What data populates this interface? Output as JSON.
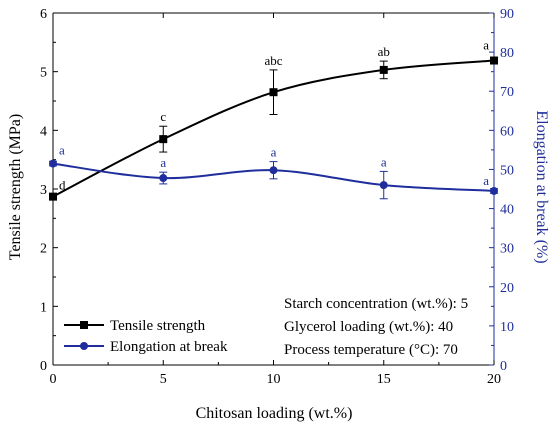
{
  "chart_data": {
    "type": "line",
    "x": [
      0,
      5,
      10,
      15,
      20
    ],
    "xlabel": "Chitosan loading (wt.%)",
    "xlim": [
      0,
      20
    ],
    "xticks": [
      0,
      5,
      10,
      15,
      20
    ],
    "ylabel": "Tensile strength (MPa)",
    "ylim": [
      0,
      6
    ],
    "yticks": [
      0,
      1,
      2,
      3,
      4,
      5,
      6
    ],
    "y2label": "Elongation at break (%)",
    "y2lim": [
      0,
      90
    ],
    "y2ticks": [
      0,
      10,
      20,
      30,
      40,
      50,
      60,
      70,
      80,
      90
    ],
    "grid": false,
    "legend_position": "bottom-left",
    "series": [
      {
        "name": "Tensile strength",
        "axis": "left",
        "marker": "square",
        "color": "#000000",
        "values": [
          2.87,
          3.85,
          4.65,
          5.03,
          5.19
        ],
        "errors": [
          0.05,
          0.22,
          0.38,
          0.15,
          0.05
        ],
        "significance": [
          "d",
          "c",
          "abc",
          "ab",
          "a"
        ]
      },
      {
        "name": "Elongation at break",
        "axis": "right",
        "marker": "circle",
        "color": "#1f2e9c",
        "values": [
          51.5,
          47.8,
          49.8,
          46.0,
          44.5
        ],
        "errors": [
          0.6,
          1.5,
          2.2,
          3.5,
          0.6
        ],
        "significance": [
          "a",
          "a",
          "a",
          "a",
          "a"
        ]
      }
    ],
    "conditions": [
      "Starch concentration (wt.%): 5",
      "Glycerol loading (wt.%): 40",
      "Process temperature (°C): 70"
    ]
  }
}
